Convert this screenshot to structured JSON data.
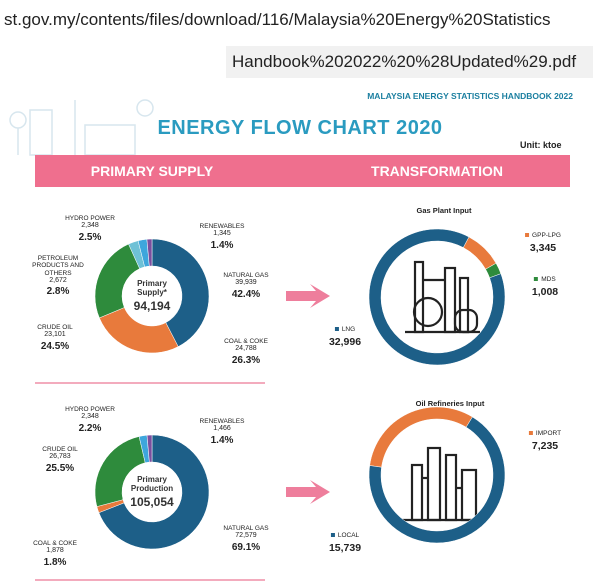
{
  "browser": {
    "url_line_1": "st.gov.my/contents/files/download/116/Malaysia%20Energy%20Statistics",
    "url_line_2": "Handbook%202022%20%28Updated%29.pdf"
  },
  "header": {
    "publication": "MALAYSIA ENERGY STATISTICS HANDBOOK 2022",
    "title": "ENERGY FLOW CHART 2020",
    "unit": "Unit: ktoe",
    "sections": [
      "PRIMARY SUPPLY",
      "TRANSFORMATION"
    ]
  },
  "chart_data": [
    {
      "type": "pie",
      "center_label": "Primary Supply*",
      "total": "94,194",
      "categories": [
        "NATURAL GAS",
        "COAL & COKE",
        "CRUDE OIL",
        "PETROLEUM PRODUCTS AND OTHERS",
        "HYDRO POWER",
        "RENEWABLES"
      ],
      "values": [
        39939,
        24788,
        23101,
        2672,
        2348,
        1345
      ],
      "value_labels": [
        "39,939",
        "24,788",
        "23,101",
        "2,672",
        "2,348",
        "1,345"
      ],
      "percentage_labels": [
        "42.4%",
        "26.3%",
        "24.5%",
        "2.8%",
        "2.5%",
        "1.4%"
      ],
      "colors": [
        "#1d5f88",
        "#e87a3c",
        "#2e8b3c",
        "#6ec1d6",
        "#3ea6dc",
        "#7a4e9e"
      ]
    },
    {
      "type": "pie",
      "title": "Gas Plant Input",
      "categories": [
        "GPP-LPG",
        "MDS",
        "LNG"
      ],
      "values": [
        3345,
        1008,
        32996
      ],
      "value_labels": [
        "3,345",
        "1,008",
        "32,996"
      ],
      "colors": [
        "#e87a3c",
        "#2e8b3c",
        "#1d5f88"
      ]
    },
    {
      "type": "pie",
      "center_label": "Primary Production",
      "total": "105,054",
      "categories": [
        "NATURAL GAS",
        "COAL & COKE",
        "CRUDE OIL",
        "HYDRO POWER",
        "RENEWABLES"
      ],
      "values": [
        72579,
        1878,
        26783,
        2348,
        1466
      ],
      "value_labels": [
        "72,579",
        "1,878",
        "26,783",
        "2,348",
        "1,466"
      ],
      "percentage_labels": [
        "69.1%",
        "1.8%",
        "25.5%",
        "2.2%",
        "1.4%"
      ],
      "colors": [
        "#1d5f88",
        "#e87a3c",
        "#2e8b3c",
        "#3ea6dc",
        "#7a4e9e"
      ]
    },
    {
      "type": "pie",
      "title": "Oil Refineries Input",
      "categories": [
        "IMPORT",
        "LOCAL"
      ],
      "values": [
        7235,
        15739
      ],
      "value_labels": [
        "7,235",
        "15,739"
      ],
      "colors": [
        "#e87a3c",
        "#1d5f88"
      ]
    }
  ]
}
